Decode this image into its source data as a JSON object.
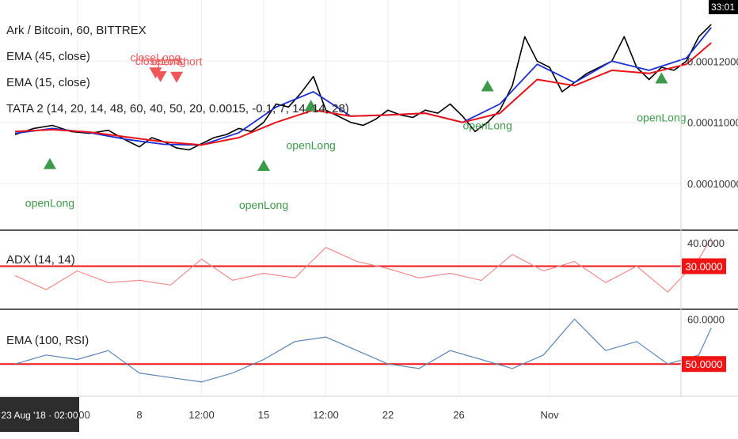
{
  "legend": {
    "main": [
      {
        "text": "Ark / Bitcoin, 60, BITTREX"
      },
      {
        "text": "EMA (45, close)"
      },
      {
        "text": "EMA (15, close)"
      },
      {
        "text": "TATA 2 (14, 20, 14, 48, 60, 40, 50, 20, 0.0015, -0.1, 7, 14, 14, 28)"
      }
    ],
    "adx": "ADX (14, 14)",
    "rsi": "EMA (100, RSI)"
  },
  "clock": "33:01",
  "x_axis": {
    "ticks": [
      {
        "label": "12:00",
        "t": 0.5
      },
      {
        "label": "8",
        "t": 1.0
      },
      {
        "label": "12:00",
        "t": 1.5
      },
      {
        "label": "15",
        "t": 2.0
      },
      {
        "label": "12:00",
        "t": 2.5
      },
      {
        "label": "22",
        "t": 3.0
      },
      {
        "label": "26",
        "t": 3.57
      },
      {
        "label": "Nov",
        "t": 4.3
      }
    ],
    "crosshair_label": "23 Aug '18 · 02:00"
  },
  "y_axis_main": {
    "ticks": [
      "0.00012000",
      "0.00011000",
      "0.00010000"
    ],
    "values": [
      0.00012,
      0.00011,
      0.0001
    ],
    "range": [
      9.25e-05,
      0.00013
    ]
  },
  "y_axis_adx": {
    "ticks": [
      "40.0000"
    ],
    "values": [
      40
    ],
    "range": [
      12,
      45
    ],
    "level_label": "30.0000",
    "level": 30
  },
  "y_axis_rsi": {
    "ticks": [
      "60.0000"
    ],
    "values": [
      60
    ],
    "range": [
      43,
      62
    ],
    "level_label": "50.0000",
    "level": 50
  },
  "colors": {
    "price": "#000000",
    "ema15": "#1c2fd1",
    "ema45": "#e8131a",
    "adx": "#f08c8c",
    "rsi": "#5b86b8",
    "level": "#f01414",
    "long": "#3d9a4a",
    "short": "#f05858",
    "grid": "#eeeeee",
    "separator": "#5a5a5a"
  },
  "signals": [
    {
      "label": "openLong",
      "type": "long",
      "t": 0.28,
      "price": 0.0001065
    },
    {
      "label": "closeLong",
      "type": "short",
      "t": 1.13,
      "price": 0.0001138
    },
    {
      "label": "openShort",
      "type": "short",
      "t": 1.3,
      "price": 0.0001131
    },
    {
      "label": "closeLong",
      "type": "short",
      "t": 1.17,
      "price": 0.0001132
    },
    {
      "label": "openLong",
      "type": "long",
      "t": 2.0,
      "price": 0.0001062
    },
    {
      "label": "openLong",
      "type": "long",
      "t": 2.38,
      "price": 0.000116
    },
    {
      "label": "openLong",
      "type": "long",
      "t": 3.8,
      "price": 0.0001192
    },
    {
      "label": "openLong",
      "type": "long",
      "t": 5.2,
      "price": 0.0001205
    }
  ],
  "chart_data": {
    "type": "line",
    "title": "Ark / Bitcoin, 60, BITTREX",
    "x_unit": "days from 7 Aug 2018",
    "series": [
      {
        "name": "Ark / Bitcoin, 60, BITTREX",
        "panel": "price",
        "x": [
          0,
          0.15,
          0.3,
          0.45,
          0.6,
          0.75,
          0.9,
          1.0,
          1.1,
          1.2,
          1.3,
          1.4,
          1.5,
          1.6,
          1.7,
          1.8,
          1.9,
          2.0,
          2.1,
          2.2,
          2.3,
          2.4,
          2.5,
          2.6,
          2.7,
          2.8,
          2.9,
          3.0,
          3.1,
          3.2,
          3.3,
          3.4,
          3.5,
          3.6,
          3.7,
          3.8,
          3.9,
          4.0,
          4.1,
          4.2,
          4.3,
          4.4,
          4.5,
          4.6,
          4.7,
          4.8,
          4.9,
          5.0,
          5.1,
          5.2,
          5.3,
          5.4,
          5.5,
          5.6
        ],
        "values": [
          0.000108,
          0.000109,
          0.0001095,
          0.0001085,
          0.0001082,
          0.0001087,
          0.000107,
          0.000106,
          0.0001075,
          0.0001068,
          0.0001058,
          0.0001055,
          0.0001065,
          0.0001075,
          0.000108,
          0.000109,
          0.0001085,
          0.00011,
          0.000113,
          0.0001125,
          0.0001148,
          0.0001175,
          0.000112,
          0.000111,
          0.00011,
          0.0001095,
          0.0001105,
          0.000112,
          0.0001112,
          0.0001108,
          0.000112,
          0.0001115,
          0.000113,
          0.000111,
          0.0001085,
          0.00011,
          0.000112,
          0.000116,
          0.000124,
          0.00012,
          0.000119,
          0.000115,
          0.0001165,
          0.000118,
          0.000119,
          0.00012,
          0.000124,
          0.000119,
          0.000117,
          0.000119,
          0.0001185,
          0.00012,
          0.000124,
          0.000126
        ]
      },
      {
        "name": "EMA (15, close)",
        "panel": "price",
        "x": [
          0,
          0.3,
          0.6,
          0.9,
          1.2,
          1.5,
          1.8,
          2.1,
          2.4,
          2.7,
          3.0,
          3.3,
          3.6,
          3.9,
          4.2,
          4.5,
          4.8,
          5.1,
          5.4,
          5.6
        ],
        "values": [
          0.0001082,
          0.000109,
          0.0001083,
          0.0001072,
          0.0001064,
          0.0001063,
          0.0001083,
          0.0001125,
          0.000115,
          0.000111,
          0.0001112,
          0.0001115,
          0.00011,
          0.000113,
          0.0001195,
          0.0001165,
          0.00012,
          0.0001185,
          0.0001205,
          0.0001255
        ]
      },
      {
        "name": "EMA (45, close)",
        "panel": "price",
        "x": [
          0,
          0.3,
          0.6,
          0.9,
          1.2,
          1.5,
          1.8,
          2.1,
          2.4,
          2.7,
          3.0,
          3.3,
          3.6,
          3.9,
          4.2,
          4.5,
          4.8,
          5.1,
          5.4,
          5.6
        ],
        "values": [
          0.0001085,
          0.0001088,
          0.0001084,
          0.0001076,
          0.0001068,
          0.0001063,
          0.0001075,
          0.00011,
          0.000112,
          0.000111,
          0.0001112,
          0.0001115,
          0.00011,
          0.0001115,
          0.000117,
          0.000116,
          0.0001185,
          0.000118,
          0.0001195,
          0.000123
        ]
      },
      {
        "name": "ADX (14, 14)",
        "panel": "adx",
        "x": [
          0,
          0.25,
          0.5,
          0.75,
          1.0,
          1.25,
          1.5,
          1.75,
          2.0,
          2.25,
          2.5,
          2.75,
          3.0,
          3.25,
          3.5,
          3.75,
          4.0,
          4.25,
          4.5,
          4.75,
          5.0,
          5.25,
          5.5,
          5.6
        ],
        "values": [
          26,
          20,
          28,
          23,
          24,
          22,
          33,
          24,
          27,
          25,
          38,
          32,
          29,
          25,
          27,
          24,
          35,
          28,
          32,
          23,
          30,
          19,
          33,
          42
        ]
      },
      {
        "name": "EMA (100, RSI)",
        "panel": "rsi",
        "x": [
          0,
          0.25,
          0.5,
          0.75,
          1.0,
          1.25,
          1.5,
          1.75,
          2.0,
          2.25,
          2.5,
          2.75,
          3.0,
          3.25,
          3.5,
          3.75,
          4.0,
          4.25,
          4.5,
          4.75,
          5.0,
          5.25,
          5.5,
          5.6
        ],
        "values": [
          50,
          52,
          51,
          53,
          48,
          47,
          46,
          48,
          51,
          55,
          56,
          53,
          50,
          49,
          53,
          51,
          49,
          52,
          60,
          53,
          55,
          50,
          52,
          58
        ]
      }
    ],
    "reference_lines": [
      {
        "panel": "adx",
        "value": 30
      },
      {
        "panel": "rsi",
        "value": 50
      }
    ],
    "grid": true
  }
}
